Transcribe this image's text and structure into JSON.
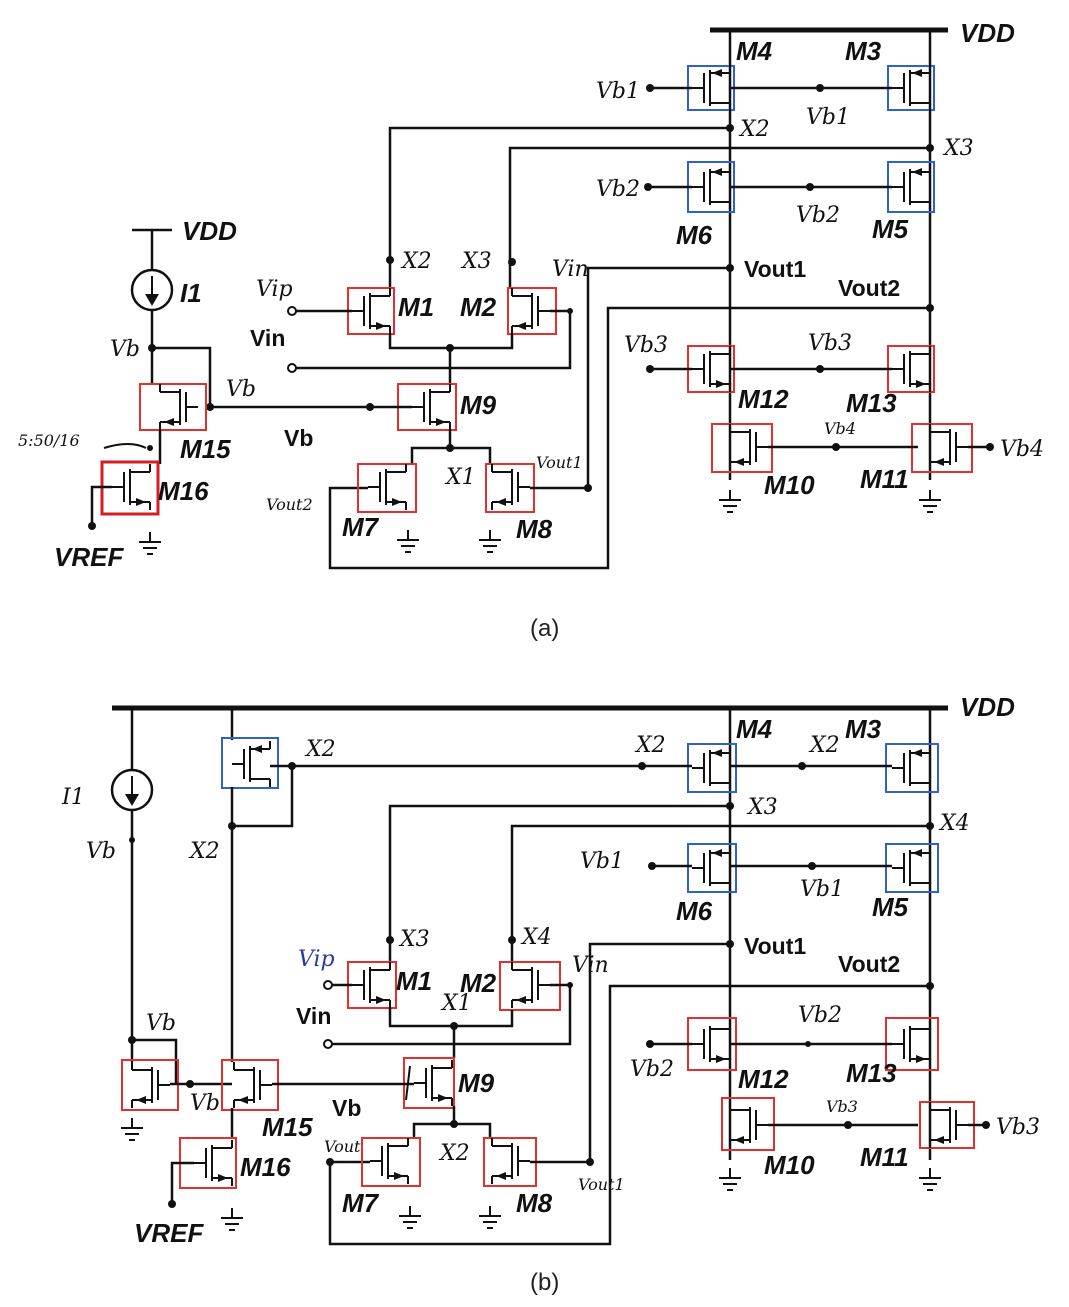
{
  "panel_a": {
    "caption": "(a)",
    "vdd_top": "VDD",
    "vdd_left": "VDD",
    "i1": "I1",
    "vref": "VREF",
    "vb_node_top": "Vb",
    "vb_node_mid": "Vb",
    "vb_line": "Vb",
    "annotation_sizing": "5:50/16",
    "vip": "Vip",
    "vin_label": "Vin",
    "vin_right": "Vin",
    "x1": "X1",
    "x2_m1": "X2",
    "x3_m2": "X3",
    "x2_node": "X2",
    "x3_node": "X3",
    "vout1": "Vout1",
    "vout2": "Vout2",
    "vout1_hand": "Vout1",
    "vout2_hand": "Vout2",
    "vb1_left": "Vb1",
    "vb1_mid": "Vb1",
    "vb2_left": "Vb2",
    "vb2_mid": "Vb2",
    "vb3_left": "Vb3",
    "vb3_mid": "Vb3",
    "vb4_mid": "Vb4",
    "vb4_right": "Vb4",
    "m1": "M1",
    "m2": "M2",
    "m3": "M3",
    "m4": "M4",
    "m5": "M5",
    "m6": "M6",
    "m7": "M7",
    "m8": "M8",
    "m9": "M9",
    "m10": "M10",
    "m11": "M11",
    "m12": "M12",
    "m13": "M13",
    "m15": "M15",
    "m16": "M16"
  },
  "panel_b": {
    "caption": "(b)",
    "vdd_top": "VDD",
    "i1": "I1",
    "vref": "VREF",
    "vb_node": "Vb",
    "vb_node2": "Vb",
    "vb_m15": "Vb",
    "vb_line": "Vb",
    "x2_left": "X2",
    "x2_vert": "X2",
    "x2_m4": "X2",
    "x2_mid": "X2",
    "x3_node": "X3",
    "x4_node": "X4",
    "x3_m1": "X3",
    "x4_m2": "X4",
    "x1": "X1",
    "x2_tail": "X2",
    "vip": "Vip",
    "vin_label": "Vin",
    "vin_right": "Vin",
    "vout1": "Vout1",
    "vout2": "Vout2",
    "vout_m7": "Vout",
    "vout1_hand": "Vout1",
    "vb1_left": "Vb1",
    "vb1_mid": "Vb1",
    "vb2_left": "Vb2",
    "vb2_mid": "Vb2",
    "vb3_mid": "Vb3",
    "vb3_right": "Vb3",
    "m1": "M1",
    "m2": "M2",
    "m3": "M3",
    "m4": "M4",
    "m5": "M5",
    "m6": "M6",
    "m7": "M7",
    "m8": "M8",
    "m9": "M9",
    "m10": "M10",
    "m11": "M11",
    "m12": "M12",
    "m13": "M13",
    "m15": "M15",
    "m16": "M16"
  },
  "colors": {
    "pmos_box": "#3060d0",
    "nmos_box": "#e03030",
    "wire": "#111111"
  }
}
